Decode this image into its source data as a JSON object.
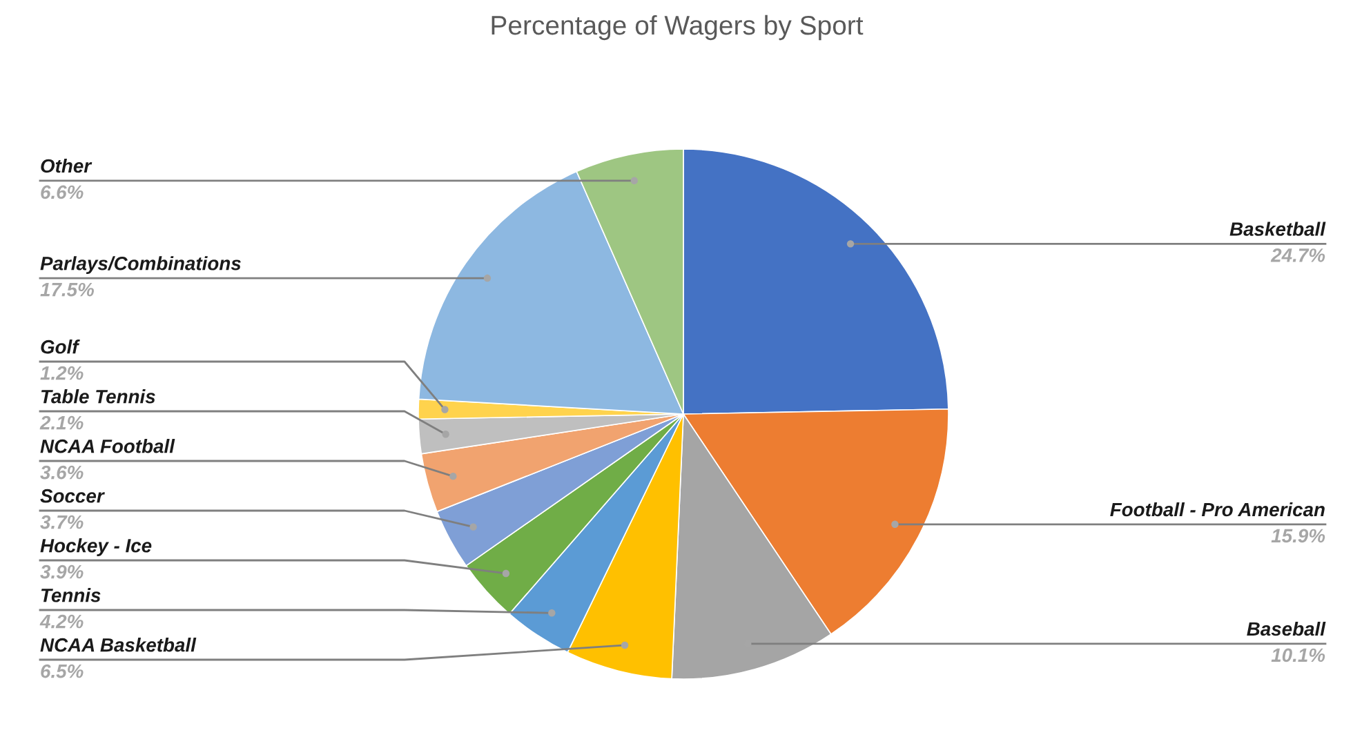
{
  "chart_data": {
    "type": "pie",
    "title": "Percentage of Wagers by Sport",
    "categories": [
      "Basketball",
      "Football - Pro American",
      "Baseball",
      "NCAA Basketball",
      "Tennis",
      "Hockey - Ice",
      "Soccer",
      "NCAA Football",
      "Table Tennis",
      "Golf",
      "Parlays/Combinations",
      "Other"
    ],
    "values": [
      24.7,
      15.9,
      10.1,
      6.5,
      4.2,
      3.9,
      3.7,
      3.6,
      2.1,
      1.2,
      17.5,
      6.6
    ],
    "value_labels": [
      "24.7%",
      "15.9%",
      "10.1%",
      "6.5%",
      "4.2%",
      "3.9%",
      "3.7%",
      "3.6%",
      "2.1%",
      "1.2%",
      "17.5%",
      "6.6%"
    ],
    "colors": [
      "#4472c4",
      "#ed7d31",
      "#a5a5a5",
      "#ffc000",
      "#5b9bd5",
      "#70ad47",
      "#7f9fd6",
      "#f1a36f",
      "#bfbfbf",
      "#ffd34d",
      "#8db8e1",
      "#9ec682"
    ]
  }
}
